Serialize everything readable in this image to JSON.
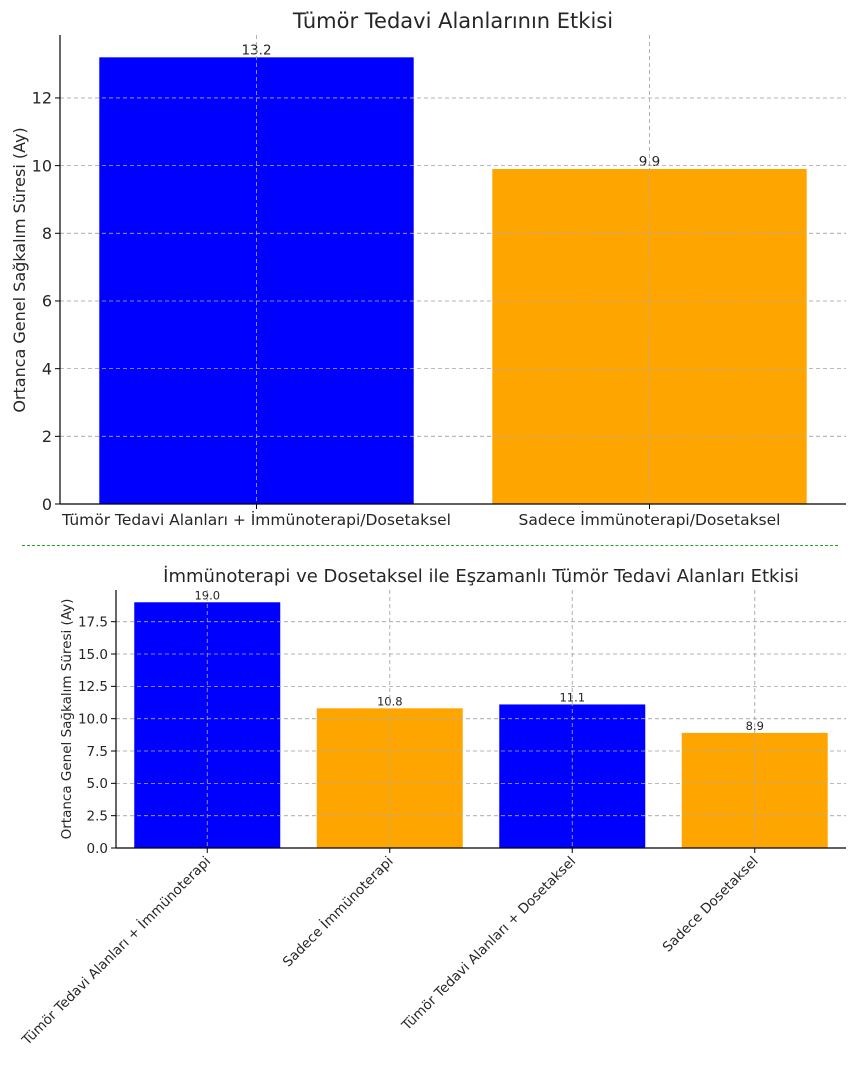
{
  "chart_data": [
    {
      "type": "bar",
      "title": "Tümör Tedavi Alanlarının Etkisi",
      "xlabel": "",
      "ylabel": "Ortanca Genel Sağkalım Süresi (Ay)",
      "categories": [
        "Tümör Tedavi Alanları + İmmünoterapi/Dosetaksel",
        "Sadece İmmünoterapi/Dosetaksel"
      ],
      "values": [
        13.2,
        9.9
      ],
      "value_labels": [
        "13.2",
        "9.9"
      ],
      "colors": [
        "#0000ff",
        "#ffa500"
      ],
      "ylim": [
        0,
        13.86
      ],
      "yticks": [
        0,
        2,
        4,
        6,
        8,
        10,
        12
      ],
      "ytick_labels": [
        "0",
        "2",
        "4",
        "6",
        "8",
        "10",
        "12"
      ],
      "grid": true
    },
    {
      "type": "bar",
      "title": "İmmünoterapi ve Dosetaksel ile Eşzamanlı Tümör Tedavi Alanları Etkisi",
      "xlabel": "",
      "ylabel": "Ortanca Genel Sağkalım Süresi (Ay)",
      "categories": [
        "Tümör Tedavi Alanları + İmmünoterapi",
        "Sadece İmmünoterapi",
        "Tümör Tedavi Alanları + Dosetaksel",
        "Sadece Dosetaksel"
      ],
      "values": [
        19.0,
        10.8,
        11.1,
        8.9
      ],
      "value_labels": [
        "19.0",
        "10.8",
        "11.1",
        "8.9"
      ],
      "colors": [
        "#0000ff",
        "#ffa500",
        "#0000ff",
        "#ffa500"
      ],
      "ylim": [
        0,
        19.95
      ],
      "yticks": [
        0,
        2.5,
        5,
        7.5,
        10,
        12.5,
        15,
        17.5
      ],
      "ytick_labels": [
        "0.0",
        "2.5",
        "5.0",
        "7.5",
        "10.0",
        "12.5",
        "15.0",
        "17.5"
      ],
      "grid": true
    }
  ],
  "divider_color": "#2ca02c"
}
